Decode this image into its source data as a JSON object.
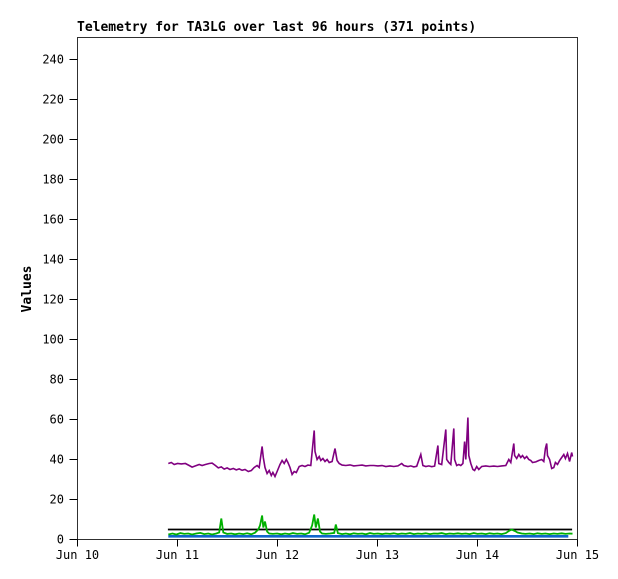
{
  "chart_data": {
    "type": "line",
    "title": "Telemetry for TA3LG over last 96 hours (371 points)",
    "xlabel": "",
    "ylabel": "Values",
    "points_count": 371,
    "grid": false,
    "legend_position": "none",
    "background_color": "#ffffff",
    "border_color": "#303030",
    "x_unit": "hours since Jun 10 00:00",
    "xlim_hours": [
      0,
      120
    ],
    "ylim": [
      0,
      251
    ],
    "yticks": [
      0,
      20,
      40,
      60,
      80,
      100,
      120,
      140,
      160,
      180,
      200,
      220,
      240
    ],
    "xticks": [
      {
        "label": "Jun 10",
        "h": 0
      },
      {
        "label": "Jun 11",
        "h": 24
      },
      {
        "label": "Jun 12",
        "h": 48
      },
      {
        "label": "Jun 13",
        "h": 72
      },
      {
        "label": "Jun 14",
        "h": 96
      },
      {
        "label": "Jun 15",
        "h": 120
      }
    ],
    "series": [
      {
        "name": "blue-channel-constant",
        "color": "#1166cc",
        "width": 2.6,
        "points": [
          [
            21.8,
            1.6
          ],
          [
            117.8,
            1.6
          ]
        ]
      },
      {
        "name": "black-channel-constant",
        "color": "#000000",
        "width": 1.8,
        "points": [
          [
            21.7,
            5
          ],
          [
            118.7,
            5
          ]
        ]
      },
      {
        "name": "green-channel",
        "color": "#00b000",
        "width": 1.8,
        "points": [
          [
            21.8,
            2.5
          ],
          [
            22.8,
            3
          ],
          [
            23.7,
            2.5
          ],
          [
            24.7,
            3.2
          ],
          [
            25.6,
            2.8
          ],
          [
            26.6,
            3
          ],
          [
            27.5,
            2.5
          ],
          [
            28.5,
            3
          ],
          [
            29.5,
            3.3
          ],
          [
            30.4,
            2.7
          ],
          [
            31.4,
            3
          ],
          [
            32.3,
            2.5
          ],
          [
            33.3,
            3
          ],
          [
            34.0,
            3.5
          ],
          [
            34.5,
            10.5
          ],
          [
            35.0,
            3.5
          ],
          [
            35.9,
            2.8
          ],
          [
            36.9,
            3
          ],
          [
            37.8,
            2.6
          ],
          [
            38.8,
            3
          ],
          [
            39.8,
            2.7
          ],
          [
            40.7,
            3.1
          ],
          [
            41.7,
            2.6
          ],
          [
            42.6,
            3.4
          ],
          [
            43.4,
            5
          ],
          [
            43.8,
            7
          ],
          [
            44.3,
            12
          ],
          [
            44.6,
            6
          ],
          [
            45.0,
            9
          ],
          [
            45.5,
            4
          ],
          [
            46.0,
            3
          ],
          [
            46.9,
            2.8
          ],
          [
            47.9,
            3
          ],
          [
            48.9,
            2.6
          ],
          [
            49.8,
            3
          ],
          [
            50.8,
            2.7
          ],
          [
            51.7,
            3.2
          ],
          [
            52.7,
            2.8
          ],
          [
            53.7,
            3
          ],
          [
            54.6,
            2.6
          ],
          [
            55.6,
            3.4
          ],
          [
            56.3,
            7
          ],
          [
            56.8,
            12.5
          ],
          [
            57.2,
            6
          ],
          [
            57.7,
            10.5
          ],
          [
            58.2,
            4
          ],
          [
            58.7,
            3
          ],
          [
            59.6,
            2.8
          ],
          [
            60.6,
            3
          ],
          [
            61.6,
            3.3
          ],
          [
            62.0,
            7.5
          ],
          [
            62.5,
            3.2
          ],
          [
            63.5,
            2.7
          ],
          [
            64.4,
            3
          ],
          [
            65.4,
            2.6
          ],
          [
            66.3,
            3.1
          ],
          [
            67.3,
            2.8
          ],
          [
            68.3,
            3
          ],
          [
            69.2,
            2.6
          ],
          [
            70.2,
            3.2
          ],
          [
            71.1,
            2.8
          ],
          [
            72.1,
            3
          ],
          [
            73.1,
            2.7
          ],
          [
            74.0,
            3
          ],
          [
            75.0,
            2.8
          ],
          [
            75.9,
            3.1
          ],
          [
            76.9,
            2.7
          ],
          [
            77.8,
            3
          ],
          [
            78.8,
            2.8
          ],
          [
            79.8,
            3.2
          ],
          [
            80.7,
            2.7
          ],
          [
            81.7,
            3
          ],
          [
            82.6,
            2.8
          ],
          [
            83.6,
            3.1
          ],
          [
            84.6,
            2.7
          ],
          [
            85.5,
            3
          ],
          [
            86.5,
            2.9
          ],
          [
            87.4,
            3.2
          ],
          [
            88.4,
            2.7
          ],
          [
            89.3,
            3
          ],
          [
            90.3,
            2.8
          ],
          [
            91.3,
            3.1
          ],
          [
            92.2,
            2.8
          ],
          [
            93.2,
            3
          ],
          [
            94.1,
            2.7
          ],
          [
            95.1,
            3.2
          ],
          [
            96.0,
            2.8
          ],
          [
            97.0,
            3
          ],
          [
            98.0,
            2.7
          ],
          [
            98.9,
            3.1
          ],
          [
            99.9,
            2.8
          ],
          [
            100.8,
            3
          ],
          [
            101.8,
            2.7
          ],
          [
            102.8,
            3.2
          ],
          [
            103.7,
            4.5
          ],
          [
            104.2,
            5
          ],
          [
            104.7,
            4.5
          ],
          [
            105.2,
            4
          ],
          [
            105.6,
            3.5
          ],
          [
            106.6,
            3
          ],
          [
            107.5,
            2.8
          ],
          [
            108.5,
            3
          ],
          [
            109.5,
            2.7
          ],
          [
            110.4,
            3.1
          ],
          [
            111.4,
            2.8
          ],
          [
            112.3,
            3
          ],
          [
            113.3,
            2.7
          ],
          [
            114.3,
            3
          ],
          [
            115.2,
            2.8
          ],
          [
            116.2,
            3.1
          ],
          [
            117.1,
            2.8
          ],
          [
            118.1,
            3
          ],
          [
            118.8,
            2.9
          ]
        ]
      },
      {
        "name": "purple-channel",
        "color": "#800080",
        "width": 1.6,
        "points": [
          [
            21.8,
            38
          ],
          [
            22.5,
            38.5
          ],
          [
            23.2,
            37.5
          ],
          [
            24.0,
            38
          ],
          [
            24.9,
            37.8
          ],
          [
            25.9,
            38
          ],
          [
            26.8,
            37
          ],
          [
            27.5,
            36.2
          ],
          [
            28.3,
            36.8
          ],
          [
            29.2,
            37.5
          ],
          [
            29.9,
            37
          ],
          [
            30.7,
            37.5
          ],
          [
            31.6,
            38
          ],
          [
            32.3,
            38.2
          ],
          [
            33.1,
            37
          ],
          [
            33.8,
            35.8
          ],
          [
            34.5,
            36.3
          ],
          [
            35.2,
            35.2
          ],
          [
            35.9,
            35.8
          ],
          [
            36.6,
            35
          ],
          [
            37.4,
            35.5
          ],
          [
            38.1,
            34.8
          ],
          [
            38.8,
            35.3
          ],
          [
            39.5,
            34.6
          ],
          [
            40.2,
            35
          ],
          [
            41.0,
            34
          ],
          [
            41.7,
            34.5
          ],
          [
            42.4,
            36
          ],
          [
            43.1,
            37
          ],
          [
            43.6,
            36
          ],
          [
            44.3,
            46.5
          ],
          [
            44.6,
            41
          ],
          [
            45.0,
            36
          ],
          [
            45.5,
            33
          ],
          [
            46.0,
            34.5
          ],
          [
            46.5,
            32
          ],
          [
            46.9,
            33.5
          ],
          [
            47.4,
            31.5
          ],
          [
            47.9,
            34
          ],
          [
            48.6,
            37.5
          ],
          [
            49.1,
            39.5
          ],
          [
            49.6,
            38
          ],
          [
            50.1,
            40
          ],
          [
            50.5,
            38.5
          ],
          [
            51.0,
            36
          ],
          [
            51.5,
            32.5
          ],
          [
            52.0,
            34
          ],
          [
            52.5,
            33.5
          ],
          [
            53.2,
            36.5
          ],
          [
            53.9,
            37
          ],
          [
            54.6,
            36.5
          ],
          [
            55.3,
            37.2
          ],
          [
            56.0,
            37
          ],
          [
            56.8,
            54.5
          ],
          [
            57.0,
            44
          ],
          [
            57.5,
            40
          ],
          [
            58.0,
            41.5
          ],
          [
            58.4,
            39.5
          ],
          [
            58.9,
            40.5
          ],
          [
            59.4,
            39
          ],
          [
            59.9,
            40
          ],
          [
            60.4,
            38.5
          ],
          [
            61.1,
            39
          ],
          [
            61.8,
            45.5
          ],
          [
            62.3,
            39.5
          ],
          [
            62.8,
            38
          ],
          [
            63.5,
            37.2
          ],
          [
            64.4,
            37
          ],
          [
            65.4,
            37.3
          ],
          [
            66.3,
            36.8
          ],
          [
            67.3,
            37
          ],
          [
            68.3,
            37.2
          ],
          [
            69.2,
            36.8
          ],
          [
            70.2,
            37
          ],
          [
            71.1,
            37
          ],
          [
            72.1,
            36.8
          ],
          [
            73.1,
            37
          ],
          [
            74.0,
            36.5
          ],
          [
            75.0,
            36.8
          ],
          [
            75.9,
            36.5
          ],
          [
            76.9,
            36.8
          ],
          [
            77.8,
            38
          ],
          [
            78.3,
            37
          ],
          [
            79.3,
            36.5
          ],
          [
            80.0,
            36.8
          ],
          [
            80.7,
            36.3
          ],
          [
            81.4,
            36.6
          ],
          [
            82.4,
            42.5
          ],
          [
            82.9,
            37
          ],
          [
            83.6,
            36.5
          ],
          [
            84.3,
            36.8
          ],
          [
            85.0,
            36.4
          ],
          [
            85.7,
            36.7
          ],
          [
            86.5,
            47
          ],
          [
            86.7,
            38
          ],
          [
            87.4,
            37.5
          ],
          [
            88.4,
            55
          ],
          [
            88.6,
            40
          ],
          [
            89.1,
            38.5
          ],
          [
            89.6,
            37.5
          ],
          [
            90.3,
            55.5
          ],
          [
            90.5,
            40
          ],
          [
            91.0,
            37
          ],
          [
            91.5,
            37.5
          ],
          [
            92.0,
            37
          ],
          [
            92.5,
            38
          ],
          [
            92.9,
            49
          ],
          [
            93.2,
            40
          ],
          [
            93.7,
            61
          ],
          [
            93.9,
            42
          ],
          [
            94.4,
            38
          ],
          [
            94.9,
            35
          ],
          [
            95.3,
            34.5
          ],
          [
            95.8,
            36.5
          ],
          [
            96.3,
            35
          ],
          [
            97.0,
            36.5
          ],
          [
            98.0,
            36.8
          ],
          [
            98.9,
            36.5
          ],
          [
            99.9,
            36.7
          ],
          [
            100.8,
            36.5
          ],
          [
            101.8,
            36.8
          ],
          [
            102.8,
            37
          ],
          [
            103.5,
            40
          ],
          [
            104.0,
            38.5
          ],
          [
            104.7,
            48
          ],
          [
            104.9,
            42
          ],
          [
            105.4,
            40.5
          ],
          [
            105.9,
            42.5
          ],
          [
            106.4,
            41
          ],
          [
            106.8,
            42
          ],
          [
            107.3,
            40.5
          ],
          [
            107.8,
            41.5
          ],
          [
            108.3,
            40
          ],
          [
            108.8,
            39.5
          ],
          [
            109.2,
            38.5
          ],
          [
            110.0,
            38.8
          ],
          [
            110.7,
            39.5
          ],
          [
            111.4,
            40
          ],
          [
            111.9,
            39
          ],
          [
            112.3,
            45.5
          ],
          [
            112.6,
            48
          ],
          [
            112.8,
            42
          ],
          [
            113.3,
            40
          ],
          [
            113.8,
            35.5
          ],
          [
            114.3,
            36
          ],
          [
            114.7,
            38.5
          ],
          [
            115.2,
            37.5
          ],
          [
            115.7,
            39.5
          ],
          [
            116.2,
            41
          ],
          [
            116.7,
            42.5
          ],
          [
            117.1,
            40.5
          ],
          [
            117.6,
            43
          ],
          [
            118.1,
            39
          ],
          [
            118.6,
            43.5
          ],
          [
            118.8,
            41.5
          ]
        ]
      }
    ]
  }
}
